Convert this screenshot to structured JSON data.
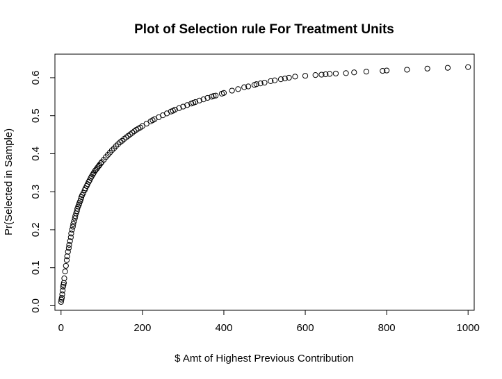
{
  "chart_data": {
    "type": "scatter",
    "title": "Plot of Selection rule For Treatment Units",
    "xlabel": "$ Amt of Highest Previous Contribution",
    "ylabel": "Pr(Selected in Sample)",
    "xlim": [
      -15,
      1015
    ],
    "ylim": [
      -0.012,
      0.662
    ],
    "xticks": [
      0,
      200,
      400,
      600,
      800,
      1000
    ],
    "xtick_labels": [
      "0",
      "200",
      "400",
      "600",
      "800",
      "1000"
    ],
    "yticks": [
      0.0,
      0.1,
      0.2,
      0.3,
      0.4,
      0.5,
      0.6
    ],
    "ytick_labels": [
      "0.0",
      "0.1",
      "0.2",
      "0.3",
      "0.4",
      "0.5",
      "0.6"
    ],
    "grid": false,
    "legend": "none",
    "marker": "open-circle",
    "series": [
      {
        "x": [
          0,
          1,
          2,
          3,
          4,
          5,
          6,
          7,
          8,
          10,
          12,
          14,
          15,
          17,
          19,
          20,
          22,
          24,
          25,
          27,
          29,
          30,
          32,
          34,
          35,
          37,
          39,
          40,
          42,
          44,
          45,
          47,
          49,
          50,
          52,
          55,
          58,
          60,
          63,
          65,
          68,
          70,
          73,
          75,
          78,
          80,
          83,
          85,
          88,
          90,
          93,
          95,
          98,
          100,
          105,
          110,
          115,
          120,
          125,
          130,
          135,
          140,
          145,
          150,
          155,
          160,
          165,
          170,
          175,
          180,
          185,
          190,
          195,
          200,
          210,
          220,
          225,
          230,
          240,
          250,
          260,
          270,
          275,
          280,
          290,
          300,
          310,
          320,
          325,
          330,
          340,
          350,
          360,
          370,
          375,
          380,
          395,
          400,
          420,
          435,
          450,
          460,
          475,
          480,
          490,
          500,
          515,
          525,
          540,
          550,
          560,
          575,
          600,
          625,
          640,
          650,
          660,
          675,
          700,
          720,
          750,
          790,
          800,
          850,
          900,
          950,
          1000
        ],
        "y": [
          0.01,
          0.016,
          0.021,
          0.03,
          0.04,
          0.05,
          0.055,
          0.06,
          0.072,
          0.09,
          0.105,
          0.12,
          0.13,
          0.142,
          0.152,
          0.16,
          0.17,
          0.18,
          0.19,
          0.2,
          0.208,
          0.215,
          0.222,
          0.23,
          0.236,
          0.243,
          0.249,
          0.255,
          0.261,
          0.266,
          0.27,
          0.275,
          0.281,
          0.286,
          0.291,
          0.297,
          0.304,
          0.309,
          0.315,
          0.32,
          0.326,
          0.33,
          0.336,
          0.34,
          0.345,
          0.349,
          0.354,
          0.357,
          0.361,
          0.364,
          0.368,
          0.371,
          0.375,
          0.378,
          0.384,
          0.391,
          0.397,
          0.403,
          0.409,
          0.414,
          0.42,
          0.425,
          0.43,
          0.434,
          0.439,
          0.443,
          0.447,
          0.451,
          0.455,
          0.459,
          0.463,
          0.466,
          0.469,
          0.473,
          0.479,
          0.485,
          0.488,
          0.491,
          0.496,
          0.501,
          0.506,
          0.511,
          0.513,
          0.516,
          0.52,
          0.524,
          0.528,
          0.532,
          0.534,
          0.536,
          0.54,
          0.543,
          0.547,
          0.55,
          0.552,
          0.553,
          0.558,
          0.56,
          0.566,
          0.57,
          0.575,
          0.577,
          0.581,
          0.583,
          0.585,
          0.587,
          0.591,
          0.593,
          0.596,
          0.598,
          0.6,
          0.603,
          0.605,
          0.607,
          0.608,
          0.609,
          0.61,
          0.611,
          0.612,
          0.614,
          0.616,
          0.618,
          0.619,
          0.621,
          0.624,
          0.626,
          0.628
        ]
      }
    ]
  }
}
